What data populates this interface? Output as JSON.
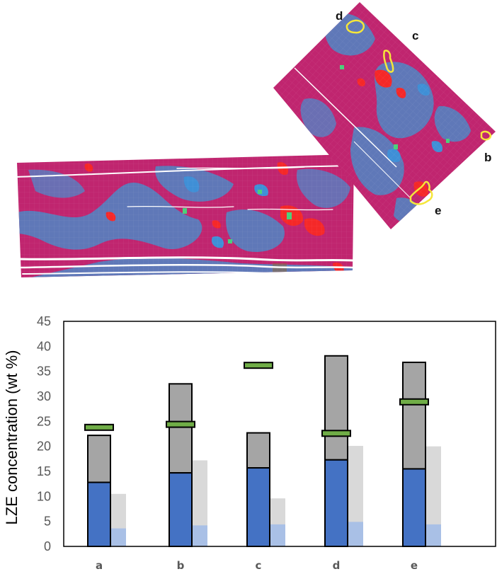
{
  "map": {
    "region_labels": [
      "d",
      "c",
      "b",
      "e"
    ],
    "colors": {
      "matrix": "#c0256f",
      "low": "#5f78b8",
      "mid": "#3f8fd6",
      "high": "#f52828",
      "hot": "#4ad07a",
      "outline": "#f5e63a"
    }
  },
  "chart_data": {
    "type": "bar",
    "title": "",
    "xlabel": "",
    "ylabel": "LZE concentration (wt %)",
    "ylim": [
      0,
      45
    ],
    "yticks": [
      0,
      5,
      10,
      15,
      20,
      25,
      30,
      35,
      40,
      45
    ],
    "grid": false,
    "legend": "none",
    "categories": [
      "a",
      "b",
      "c",
      "d",
      "e"
    ],
    "series": [
      {
        "role": "stacked-lower",
        "color": "#4472c4",
        "values": [
          12.8,
          14.7,
          15.7,
          17.3,
          15.5
        ]
      },
      {
        "role": "stacked-total",
        "color": "#a5a5a5",
        "values": [
          22.2,
          32.5,
          22.7,
          38.1,
          36.8
        ]
      },
      {
        "role": "light-total",
        "color": "#d9d9d9",
        "values": [
          10.5,
          17.2,
          9.6,
          20.1,
          20.0
        ]
      },
      {
        "role": "light-lower",
        "color": "#a9c0e6",
        "values": [
          3.6,
          4.2,
          4.4,
          4.9,
          4.4
        ]
      },
      {
        "role": "marker",
        "color": "#70ad47",
        "values": [
          23.8,
          24.4,
          36.2,
          22.6,
          28.9
        ]
      }
    ]
  }
}
